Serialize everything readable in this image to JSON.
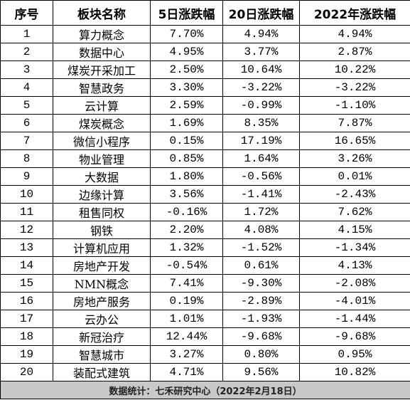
{
  "table": {
    "headers": [
      "序号",
      "板块名称",
      "5日涨跌幅",
      "20日涨跌幅",
      "2022年涨跌幅"
    ],
    "rows": [
      [
        "1",
        "算力概念",
        "7.70%",
        "4.94%",
        "4.94%"
      ],
      [
        "2",
        "数据中心",
        "4.95%",
        "3.77%",
        "2.87%"
      ],
      [
        "3",
        "煤炭开采加工",
        "2.50%",
        "10.64%",
        "10.22%"
      ],
      [
        "4",
        "智慧政务",
        "3.30%",
        "-3.22%",
        "-3.22%"
      ],
      [
        "5",
        "云计算",
        "2.59%",
        "-0.99%",
        "-1.10%"
      ],
      [
        "6",
        "煤炭概念",
        "1.69%",
        "8.35%",
        "7.87%"
      ],
      [
        "7",
        "微信小程序",
        "0.15%",
        "17.19%",
        "16.65%"
      ],
      [
        "8",
        "物业管理",
        "0.85%",
        "1.64%",
        "3.26%"
      ],
      [
        "9",
        "大数据",
        "1.80%",
        "-0.56%",
        "0.01%"
      ],
      [
        "10",
        "边缘计算",
        "3.56%",
        "-1.41%",
        "-2.43%"
      ],
      [
        "11",
        "租售同权",
        "-0.16%",
        "1.72%",
        "7.62%"
      ],
      [
        "12",
        "钢铁",
        "2.20%",
        "4.08%",
        "4.15%"
      ],
      [
        "13",
        "计算机应用",
        "1.32%",
        "-1.52%",
        "-1.34%"
      ],
      [
        "14",
        "房地产开发",
        "-0.54%",
        "0.61%",
        "4.13%"
      ],
      [
        "15",
        "NMN概念",
        "7.41%",
        "-9.30%",
        "-2.08%"
      ],
      [
        "16",
        "房地产服务",
        "0.19%",
        "-2.89%",
        "-4.01%"
      ],
      [
        "17",
        "云办公",
        "1.01%",
        "-1.93%",
        "-1.44%"
      ],
      [
        "18",
        "新冠治疗",
        "12.44%",
        "-9.68%",
        "-9.68%"
      ],
      [
        "19",
        "智慧城市",
        "3.27%",
        "0.80%",
        "0.95%"
      ],
      [
        "20",
        "装配式建筑",
        "4.71%",
        "9.56%",
        "10.82%"
      ]
    ],
    "footer": "数据统计：七禾研究中心（2022年2月18日）"
  }
}
